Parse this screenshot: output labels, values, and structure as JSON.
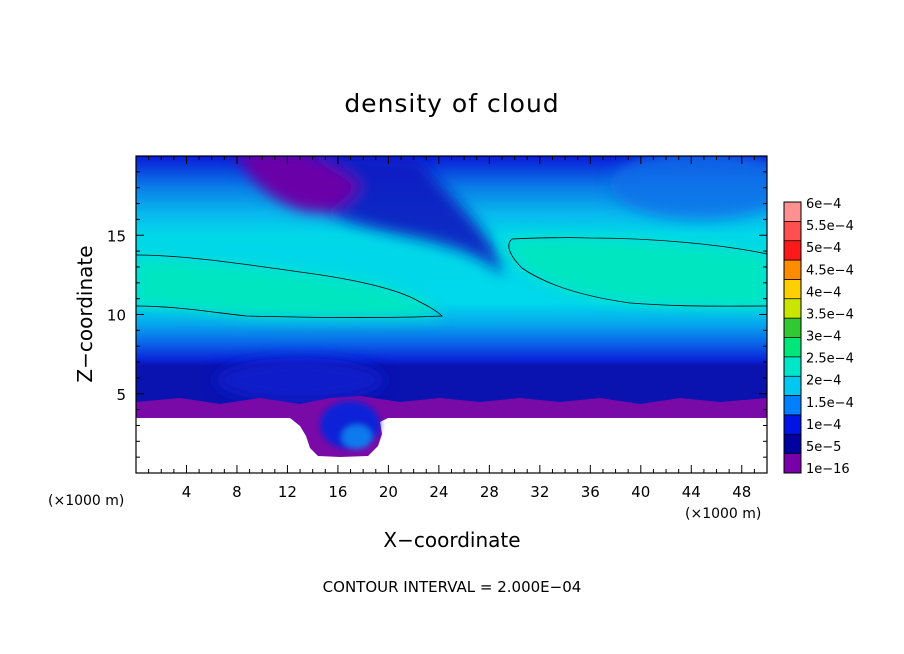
{
  "chart_data": {
    "type": "heatmap",
    "title": "density of cloud",
    "xlabel": "X−coordinate",
    "ylabel": "Z−coordinate",
    "x_unit": "(×1000 m)",
    "z_unit": "(×1000 m)",
    "xlim": [
      0,
      50
    ],
    "ylim": [
      0,
      20
    ],
    "x_ticks": [
      4,
      8,
      12,
      16,
      20,
      24,
      28,
      32,
      36,
      40,
      44,
      48
    ],
    "y_ticks": [
      5,
      10,
      15
    ],
    "colorbar": {
      "labels": [
        "6e−4",
        "5.5e−4",
        "5e−4",
        "4.5e−4",
        "4e−4",
        "3.5e−4",
        "3e−4",
        "2.5e−4",
        "2e−4",
        "1.5e−4",
        "1e−4",
        "5e−5",
        "1e−16"
      ],
      "colors": [
        "#ff9090",
        "#ff5050",
        "#ff1a1a",
        "#ff8c00",
        "#ffd000",
        "#c8e600",
        "#32c832",
        "#00e678",
        "#00e6c8",
        "#00c8f0",
        "#0080ff",
        "#0014e6",
        "#0000a0",
        "#7800a8"
      ]
    },
    "footer": "CONTOUR INTERVAL = 2.000E−04"
  }
}
